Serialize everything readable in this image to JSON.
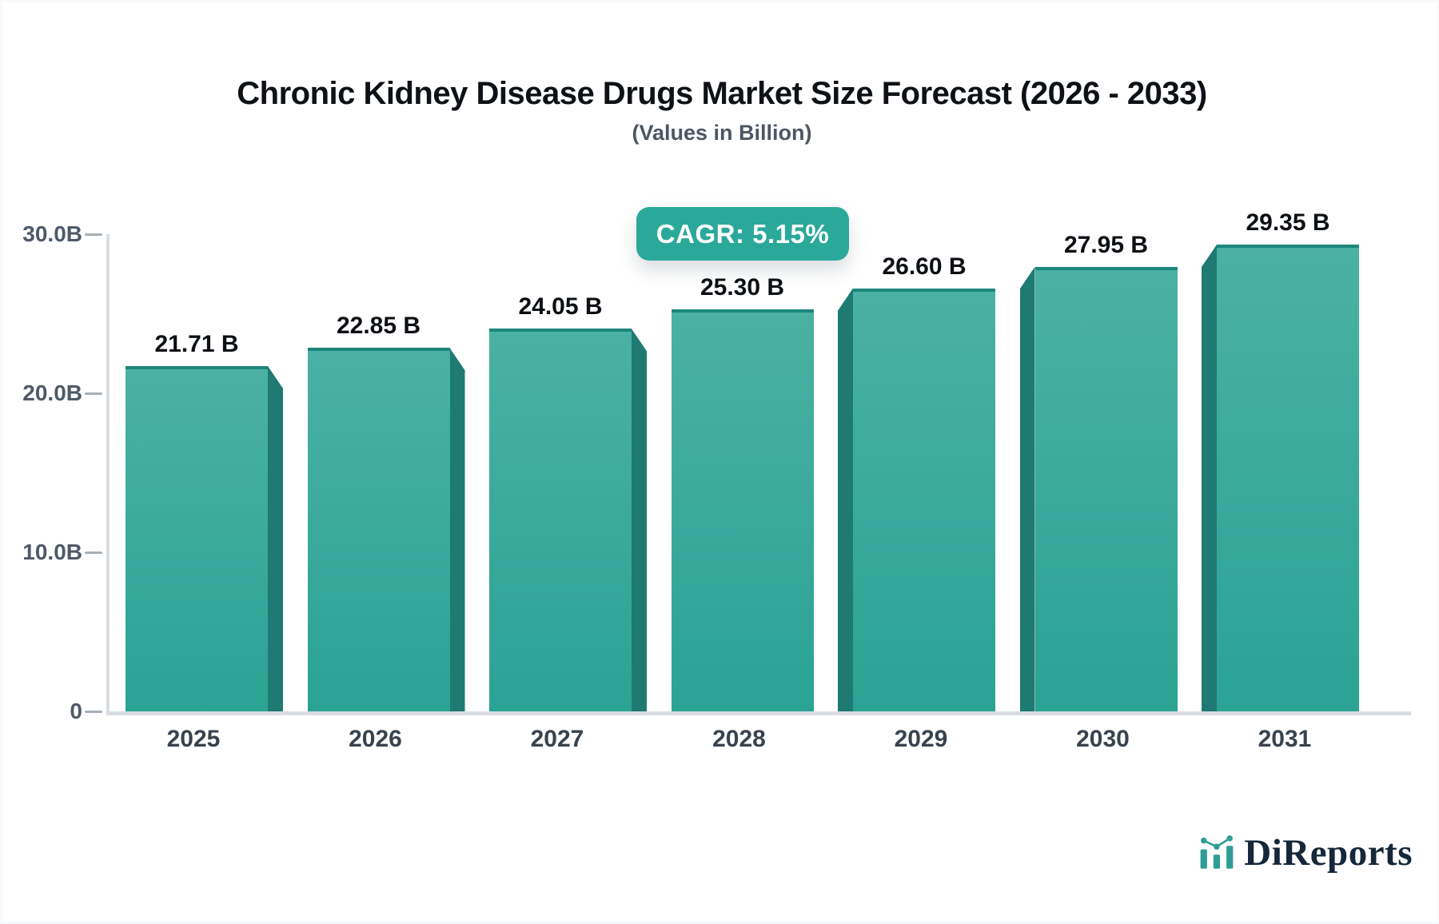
{
  "header": {
    "title": "Chronic Kidney Disease Drugs Market Size Forecast (2026 - 2033)",
    "subtitle": "(Values in Billion)"
  },
  "badge": {
    "label": "CAGR: 5.15%",
    "color": "#2aa99a"
  },
  "chart_data": {
    "type": "bar",
    "title": "Chronic Kidney Disease Drugs Market Size Forecast (2026 - 2033)",
    "subtitle": "(Values in Billion)",
    "categories": [
      "2025",
      "2026",
      "2027",
      "2028",
      "2029",
      "2030",
      "2031"
    ],
    "values": [
      21.71,
      22.85,
      24.05,
      25.3,
      26.6,
      27.95,
      29.35
    ],
    "bar_labels": [
      "21.71 B",
      "22.85 B",
      "24.05 B",
      "25.30 B",
      "26.60 B",
      "27.95 B",
      "29.35 B"
    ],
    "cagr_annotation": "CAGR: 5.15%",
    "xlabel": "",
    "ylabel": "",
    "ylim": [
      0,
      30
    ],
    "yticks": [
      {
        "label": "30.0B",
        "value": 30
      },
      {
        "label": "20.0B",
        "value": 20
      },
      {
        "label": "10.0B",
        "value": 10
      },
      {
        "label": "0",
        "value": 0
      }
    ],
    "grid": false,
    "legend": "none",
    "colors": {
      "bar_top": "#4ab1a4",
      "bar_bottom": "#2aa395",
      "bar_edge": "#1d867c",
      "bar_side_3d": "#1e7a72",
      "axis_line": "#d9dde2",
      "tick_text": "#4e5a6a",
      "category_text": "#39434e",
      "value_text": "#0c0f13"
    }
  },
  "footer": {
    "brand": "DiReports",
    "logo_teal": "#2f9d95",
    "logo_navy": "#15273a"
  }
}
